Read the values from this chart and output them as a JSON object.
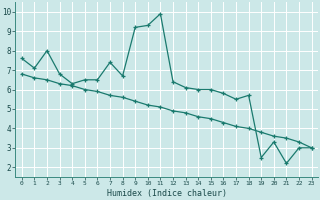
{
  "xlabel": "Humidex (Indice chaleur)",
  "ylabel": "",
  "xlim": [
    -0.5,
    23.5
  ],
  "ylim": [
    1.5,
    10.5
  ],
  "yticks": [
    2,
    3,
    4,
    5,
    6,
    7,
    8,
    9,
    10
  ],
  "xticks": [
    0,
    1,
    2,
    3,
    4,
    5,
    6,
    7,
    8,
    9,
    10,
    11,
    12,
    13,
    14,
    15,
    16,
    17,
    18,
    19,
    20,
    21,
    22,
    23
  ],
  "bg_color": "#cce8e8",
  "grid_color": "#b0d4d4",
  "line_color": "#1a7a6e",
  "line1_x": [
    0,
    1,
    2,
    3,
    4,
    5,
    6,
    7,
    8,
    9,
    10,
    11,
    12,
    13,
    14,
    15,
    16,
    17,
    18,
    19,
    20,
    21,
    22,
    23
  ],
  "line1_y": [
    7.6,
    7.1,
    8.0,
    6.8,
    6.3,
    6.5,
    6.5,
    7.4,
    6.7,
    9.2,
    9.3,
    9.9,
    6.4,
    6.1,
    6.0,
    6.0,
    5.8,
    5.5,
    5.7,
    2.5,
    3.3,
    2.2,
    3.0,
    3.0
  ],
  "line2_x": [
    0,
    1,
    2,
    3,
    4,
    5,
    6,
    7,
    8,
    9,
    10,
    11,
    12,
    13,
    14,
    15,
    16,
    17,
    18,
    19,
    20,
    21,
    22,
    23
  ],
  "line2_y": [
    6.8,
    6.6,
    6.5,
    6.3,
    6.2,
    6.0,
    5.9,
    5.7,
    5.6,
    5.4,
    5.2,
    5.1,
    4.9,
    4.8,
    4.6,
    4.5,
    4.3,
    4.1,
    4.0,
    3.8,
    3.6,
    3.5,
    3.3,
    3.0
  ]
}
